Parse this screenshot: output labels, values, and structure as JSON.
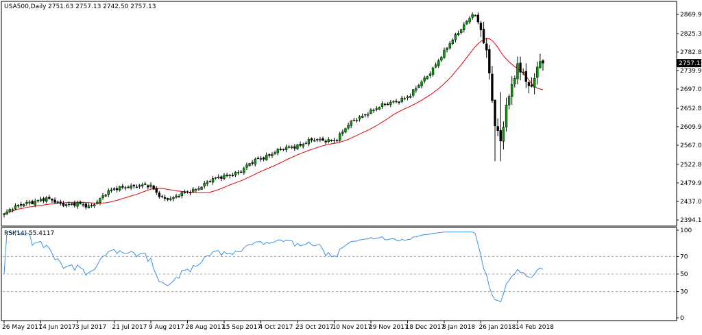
{
  "colors": {
    "background": "#ffffff",
    "frame": "#000000",
    "bull_body": "#00a000",
    "bear_body": "#000000",
    "wick": "#000000",
    "ma_line": "#e00000",
    "rsi_line": "#3a8ee6",
    "level_line": "#a0a0a0",
    "price_tag_bg": "#000000",
    "price_tag_text": "#ffffff"
  },
  "header": {
    "symbol": "USA500,Daily",
    "ohlc": "2751.63 2757.13 2742.50 2757.13"
  },
  "rsi_header": {
    "label": "RSI(14) 55.4117"
  },
  "current_price_label": "2757.13",
  "chart_data": [
    {
      "type": "candlestick",
      "symbol": "USA500",
      "timeframe": "Daily",
      "ylim": [
        2380.0,
        2900.0
      ],
      "y_ticks": [
        "2869.90",
        "2825.30",
        "2782.80",
        "2739.90",
        "2697.00",
        "2652.80",
        "2609.90",
        "2567.00",
        "2522.80",
        "2479.90",
        "2437.00",
        "2394.10"
      ],
      "x_tick_labels": [
        "26 May 2017",
        "14 Jun 2017",
        "3 Jul 2017",
        "21 Jul 2017",
        "9 Aug 2017",
        "28 Aug 2017",
        "15 Sep 2017",
        "4 Oct 2017",
        "23 Oct 2017",
        "10 Nov 2017",
        "29 Nov 2017",
        "18 Dec 2017",
        "8 Jan 2018",
        "26 Jan 2018",
        "14 Feb 2018"
      ],
      "x_tick_index": [
        0,
        13,
        26,
        39,
        52,
        65,
        78,
        91,
        104,
        117,
        130,
        143,
        156,
        169,
        182
      ],
      "last_price": 2757.13,
      "overlay": {
        "type": "moving_average"
      },
      "close_anchors": [
        [
          0,
          2407
        ],
        [
          8,
          2437
        ],
        [
          16,
          2440
        ],
        [
          24,
          2430
        ],
        [
          30,
          2425
        ],
        [
          36,
          2455
        ],
        [
          44,
          2475
        ],
        [
          52,
          2470
        ],
        [
          56,
          2448
        ],
        [
          60,
          2443
        ],
        [
          66,
          2462
        ],
        [
          72,
          2480
        ],
        [
          80,
          2502
        ],
        [
          84,
          2505
        ],
        [
          90,
          2538
        ],
        [
          96,
          2549
        ],
        [
          102,
          2565
        ],
        [
          108,
          2575
        ],
        [
          114,
          2580
        ],
        [
          118,
          2582
        ],
        [
          124,
          2625
        ],
        [
          128,
          2642
        ],
        [
          132,
          2650
        ],
        [
          138,
          2670
        ],
        [
          144,
          2680
        ],
        [
          150,
          2730
        ],
        [
          156,
          2780
        ],
        [
          162,
          2840
        ],
        [
          166,
          2872
        ],
        [
          168,
          2850
        ],
        [
          170,
          2800
        ],
        [
          172,
          2740
        ],
        [
          174,
          2620
        ],
        [
          176,
          2590
        ],
        [
          178,
          2650
        ],
        [
          180,
          2700
        ],
        [
          182,
          2735
        ],
        [
          184,
          2740
        ],
        [
          186,
          2705
        ],
        [
          188,
          2735
        ],
        [
          190,
          2757.13
        ]
      ]
    },
    {
      "type": "line",
      "name": "RSI(14)",
      "last_value": 55.4117,
      "ylim": [
        0,
        100
      ],
      "y_ticks": [
        100,
        70,
        50,
        30,
        0
      ],
      "levels": [
        70,
        50,
        30
      ]
    }
  ]
}
